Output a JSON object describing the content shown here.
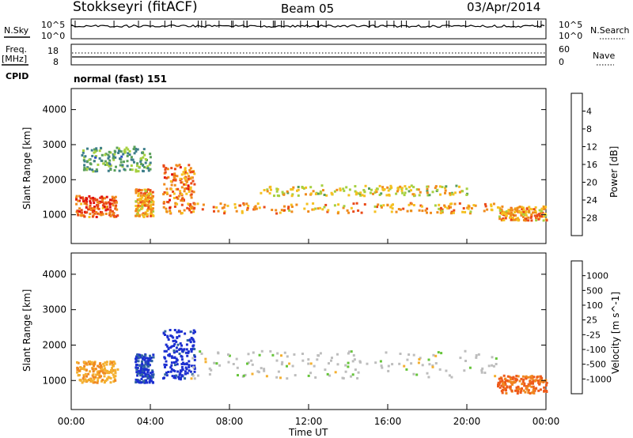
{
  "header": {
    "station": "Stokkseyri (fitACF)",
    "beam": "Beam 05",
    "date": "03/Apr/2014"
  },
  "top_panels": {
    "nsky_label": "N.Sky",
    "nsky_ticks": [
      "10^5",
      "10^0"
    ],
    "nsearch_label": "N.Search",
    "nsearch_ticks": [
      "10^5",
      "10^0"
    ],
    "freq_label": "Freq.",
    "freq_unit": "[MHz]",
    "freq_ticks": [
      "18",
      "8"
    ],
    "nave_label": "Nave",
    "nave_ticks": [
      "60",
      "0"
    ],
    "cpid_label": "CPID",
    "cpid_value": "normal (fast) 151"
  },
  "axes": {
    "ylabel": "Slant Range [km]",
    "xlabel": "Time UT",
    "x_ticks": [
      "00:00",
      "04:00",
      "08:00",
      "12:00",
      "16:00",
      "20:00",
      "00:00"
    ],
    "y_ticks": [
      "1000",
      "2000",
      "3000",
      "4000"
    ]
  },
  "power_colorbar": {
    "label": "Power [dB]",
    "ticks": [
      "4",
      "8",
      "12",
      "16",
      "20",
      "24",
      "28"
    ],
    "colors": [
      "#1a1aff",
      "#2a4fc2",
      "#3d7e8a",
      "#5aa05a",
      "#a6d040",
      "#f5c020",
      "#f08a1c",
      "#ea4a18",
      "#e01010"
    ]
  },
  "velocity_colorbar": {
    "label": "Velocity [m s^-1]",
    "ticks": [
      "1000",
      "500",
      "100",
      "25",
      "-25",
      "-100",
      "-500",
      "-1000"
    ],
    "colors": [
      "#1c2fd0",
      "#2f66a0",
      "#3a8a5a",
      "#66c43a",
      "#bdbdbd",
      "#f4b030",
      "#f08820",
      "#ee5a1a",
      "#e01010"
    ]
  },
  "chart_data": [
    {
      "type": "heatmap",
      "title": "",
      "xlabel": "Time UT",
      "ylabel": "Slant Range [km]",
      "xlim": [
        0,
        24
      ],
      "ylim": [
        180,
        4600
      ],
      "colorbar": {
        "label": "Power [dB]",
        "range": [
          0,
          32
        ]
      },
      "regions": [
        {
          "t0": 0.2,
          "t1": 2.3,
          "r0": 900,
          "r1": 1500,
          "value": 26
        },
        {
          "t0": 3.2,
          "t1": 4.1,
          "r0": 900,
          "r1": 1700,
          "value": 22
        },
        {
          "t0": 4.6,
          "t1": 6.2,
          "r0": 1000,
          "r1": 2400,
          "value": 24
        },
        {
          "t0": 6.0,
          "t1": 21.5,
          "r0": 1000,
          "r1": 1300,
          "value": 22
        },
        {
          "t0": 9.5,
          "t1": 20.0,
          "r0": 1500,
          "r1": 1800,
          "value": 18
        },
        {
          "t0": 21.5,
          "t1": 24.0,
          "r0": 800,
          "r1": 1200,
          "value": 22
        },
        {
          "t0": 0.5,
          "t1": 4.0,
          "r0": 2200,
          "r1": 2900,
          "value": 12
        }
      ]
    },
    {
      "type": "heatmap",
      "title": "",
      "xlabel": "Time UT",
      "ylabel": "Slant Range [km]",
      "xlim": [
        0,
        24
      ],
      "ylim": [
        180,
        4600
      ],
      "colorbar": {
        "label": "Velocity [m s^-1]",
        "range": [
          -1000,
          1000
        ]
      },
      "regions": [
        {
          "t0": 0.2,
          "t1": 2.3,
          "r0": 900,
          "r1": 1500,
          "value": -300
        },
        {
          "t0": 3.2,
          "t1": 4.1,
          "r0": 900,
          "r1": 1700,
          "value": 800
        },
        {
          "t0": 4.6,
          "t1": 6.2,
          "r0": 1000,
          "r1": 2400,
          "value": 900
        },
        {
          "t0": 6.0,
          "t1": 21.5,
          "r0": 1000,
          "r1": 1800,
          "value": 0
        },
        {
          "t0": 21.5,
          "t1": 24.0,
          "r0": 600,
          "r1": 1100,
          "value": -600
        }
      ]
    }
  ]
}
